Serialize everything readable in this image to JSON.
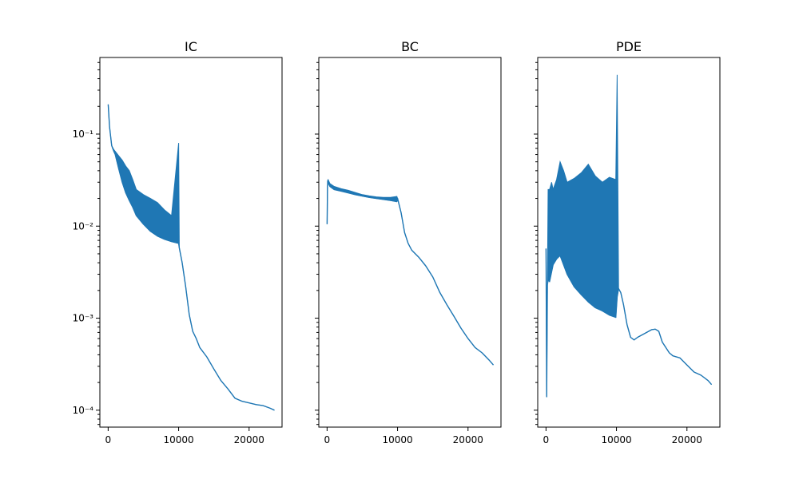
{
  "series_color": "#1f77b4",
  "chart_data": [
    {
      "type": "line",
      "title": "IC",
      "yscale": "log",
      "xlim": [
        -1175,
        24675
      ],
      "ylim": [
        6.55e-05,
        0.68
      ],
      "x_ticks": [
        0,
        10000,
        20000
      ],
      "x_tick_labels": [
        "0",
        "10000",
        "20000"
      ],
      "y_ticks": [
        0.0001,
        0.001,
        0.01,
        0.1
      ],
      "y_tick_labels": [
        "10⁻⁴",
        "10⁻³",
        "10⁻²",
        "10⁻¹"
      ],
      "grid": false,
      "series": [
        {
          "x": [
            0,
            200,
            500,
            800,
            1000,
            1500,
            2000,
            2500,
            3000,
            3500,
            4000,
            5000,
            6000,
            7000,
            8000,
            9000,
            10000,
            10100,
            10500,
            11000,
            11500,
            12000,
            12500,
            13000,
            14000,
            15000,
            16000,
            17000,
            18000,
            19000,
            20000,
            21000,
            22000,
            23000,
            23600
          ],
          "y": [
            0.21,
            0.12,
            0.075,
            0.065,
            0.06,
            0.042,
            0.03,
            0.023,
            0.019,
            0.016,
            0.013,
            0.0105,
            0.0088,
            0.0078,
            0.0072,
            0.0068,
            0.0065,
            0.0058,
            0.004,
            0.0022,
            0.0011,
            0.00072,
            0.0006,
            0.00048,
            0.00038,
            0.00028,
            0.00021,
            0.00017,
            0.000135,
            0.000125,
            0.00012,
            0.000115,
            0.000112,
            0.000105,
            0.0001
          ],
          "y_upper": [
            0.21,
            0.12,
            0.075,
            0.068,
            0.065,
            0.058,
            0.052,
            0.045,
            0.04,
            0.032,
            0.025,
            0.022,
            0.02,
            0.018,
            0.015,
            0.013,
            0.08,
            0.0058,
            0.004,
            0.0022,
            0.0011,
            0.00072,
            0.0006,
            0.00048,
            0.00038,
            0.00028,
            0.00021,
            0.00017,
            0.000135,
            0.000125,
            0.00012,
            0.000115,
            0.000112,
            0.000105,
            0.0001
          ]
        }
      ]
    },
    {
      "type": "line",
      "title": "BC",
      "yscale": "log",
      "xlim": [
        -1175,
        24675
      ],
      "ylim": [
        6.55e-05,
        0.68
      ],
      "x_ticks": [
        0,
        10000,
        20000
      ],
      "x_tick_labels": [
        "0",
        "10000",
        "20000"
      ],
      "y_ticks": [
        0.0001,
        0.001,
        0.01,
        0.1
      ],
      "y_tick_labels": [
        "",
        "",
        "",
        ""
      ],
      "grid": false,
      "series": [
        {
          "x": [
            0,
            60,
            150,
            400,
            1000,
            2000,
            3000,
            4000,
            5000,
            6000,
            7000,
            8000,
            9000,
            9900,
            10000,
            10500,
            11000,
            11500,
            12000,
            13000,
            14000,
            15000,
            16000,
            17000,
            18000,
            19000,
            20000,
            21000,
            22000,
            23000,
            23600
          ],
          "y": [
            0.0105,
            0.027,
            0.03,
            0.027,
            0.025,
            0.024,
            0.023,
            0.022,
            0.0212,
            0.0205,
            0.02,
            0.0195,
            0.019,
            0.0185,
            0.02,
            0.014,
            0.0085,
            0.0065,
            0.0055,
            0.0046,
            0.0037,
            0.0028,
            0.0019,
            0.0014,
            0.00105,
            0.00078,
            0.0006,
            0.00048,
            0.00042,
            0.00035,
            0.00031
          ],
          "y_upper": [
            0.0105,
            0.031,
            0.032,
            0.029,
            0.027,
            0.0255,
            0.0245,
            0.0232,
            0.022,
            0.0213,
            0.0208,
            0.0205,
            0.0205,
            0.021,
            0.02,
            0.014,
            0.0085,
            0.0065,
            0.0055,
            0.0046,
            0.0037,
            0.0028,
            0.0019,
            0.0014,
            0.00105,
            0.00078,
            0.0006,
            0.00048,
            0.00042,
            0.00035,
            0.00031
          ]
        }
      ]
    },
    {
      "type": "line",
      "title": "PDE",
      "yscale": "log",
      "xlim": [
        -1175,
        24675
      ],
      "ylim": [
        6.55e-05,
        0.68
      ],
      "x_ticks": [
        0,
        10000,
        20000
      ],
      "x_tick_labels": [
        "0",
        "10000",
        "20000"
      ],
      "y_ticks": [
        0.0001,
        0.001,
        0.01,
        0.1
      ],
      "y_tick_labels": [
        "",
        "",
        "",
        ""
      ],
      "grid": false,
      "series": [
        {
          "x": [
            0,
            100,
            200,
            300,
            500,
            800,
            1000,
            1500,
            2000,
            2500,
            3000,
            4000,
            5000,
            6000,
            7000,
            8000,
            9000,
            9900,
            10100,
            10300,
            10600,
            11000,
            11500,
            12000,
            12500,
            13000,
            14000,
            15000,
            15500,
            16000,
            16500,
            17000,
            17500,
            18000,
            19000,
            20000,
            21000,
            22000,
            23000,
            23500
          ],
          "y": [
            0.0057,
            0.00014,
            0.0023,
            0.0026,
            0.0025,
            0.0032,
            0.0038,
            0.0044,
            0.0048,
            0.0038,
            0.003,
            0.0022,
            0.0018,
            0.0015,
            0.0013,
            0.0012,
            0.00108,
            0.00102,
            0.0017,
            0.0021,
            0.0019,
            0.0014,
            0.00085,
            0.00062,
            0.00058,
            0.00062,
            0.00068,
            0.00075,
            0.00076,
            0.00072,
            0.00055,
            0.00048,
            0.00042,
            0.00039,
            0.00037,
            0.00031,
            0.00026,
            0.00024,
            0.00021,
            0.00019
          ],
          "y_upper": [
            0.0057,
            0.00014,
            0.0025,
            0.025,
            0.025,
            0.03,
            0.025,
            0.032,
            0.05,
            0.04,
            0.03,
            0.033,
            0.038,
            0.047,
            0.035,
            0.03,
            0.034,
            0.032,
            0.44,
            0.0021,
            0.0019,
            0.0014,
            0.00085,
            0.00062,
            0.00058,
            0.00062,
            0.00068,
            0.00075,
            0.00076,
            0.00072,
            0.00055,
            0.00048,
            0.00042,
            0.00039,
            0.00037,
            0.00031,
            0.00026,
            0.00024,
            0.00021,
            0.00019
          ]
        }
      ]
    }
  ]
}
